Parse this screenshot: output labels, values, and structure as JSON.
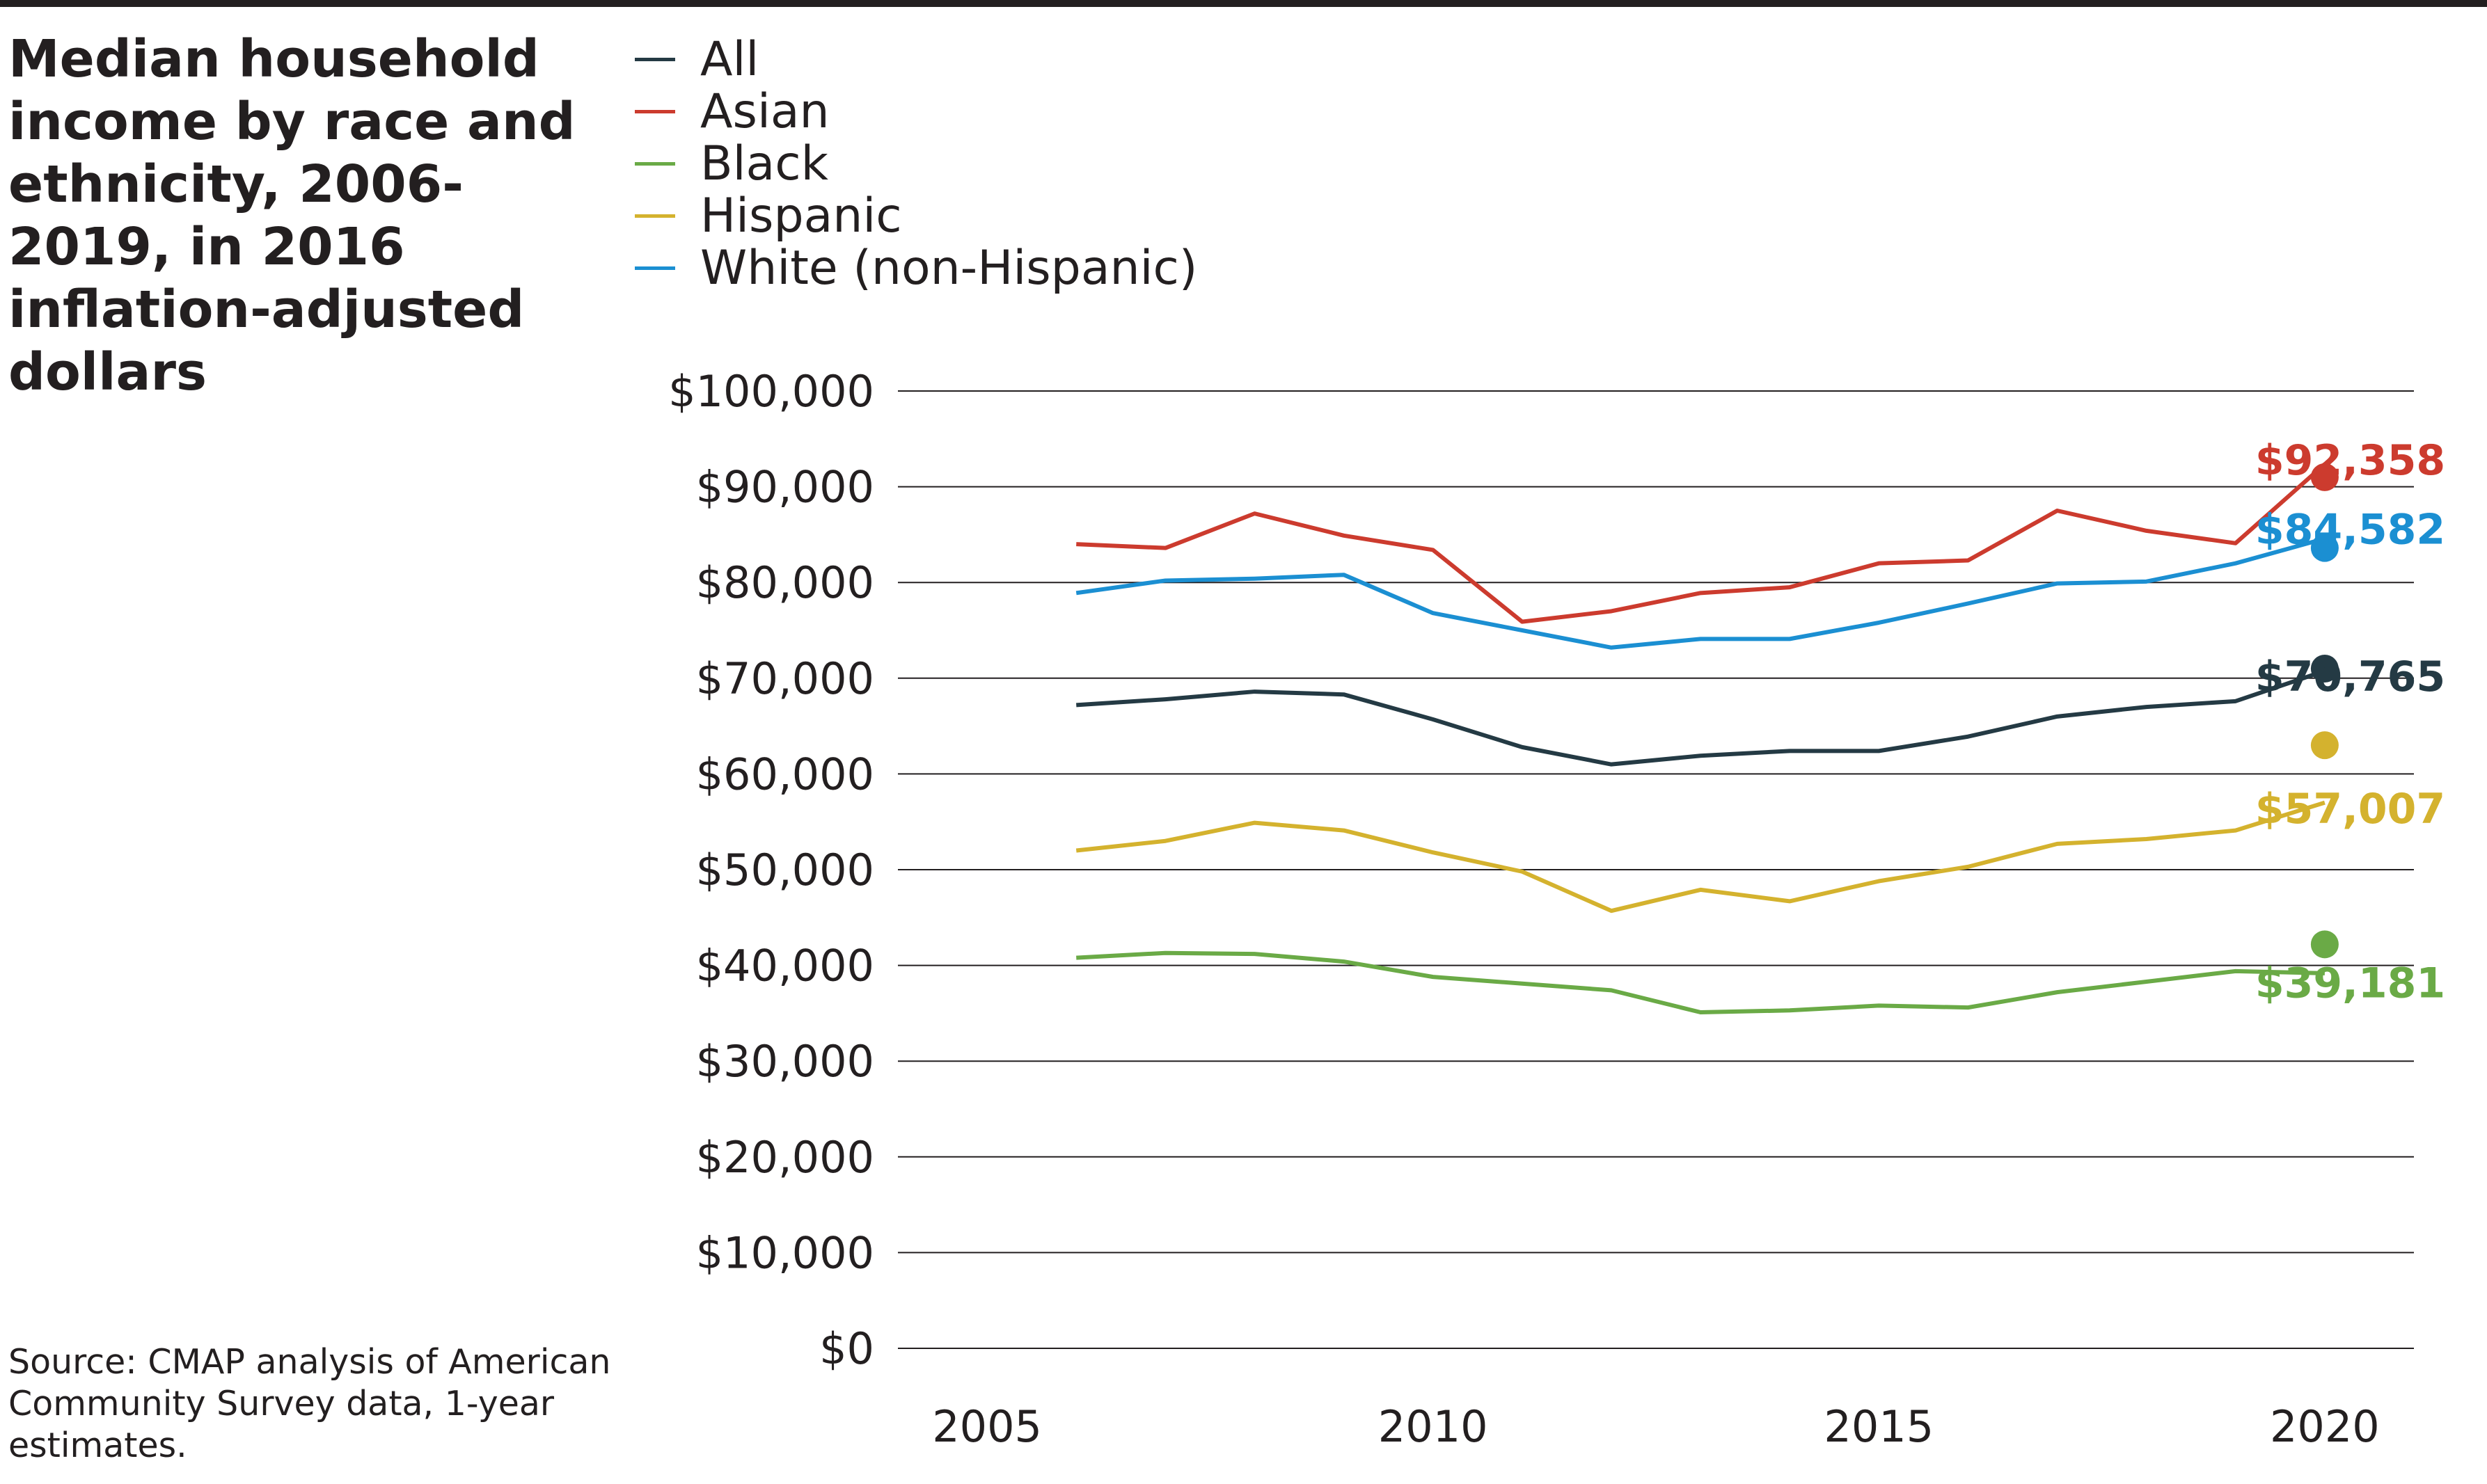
{
  "title": "Median household income by race and ethnicity, 2006-2019, in 2016 inflation-adjusted dollars",
  "source": "Source: CMAP analysis of American Community Survey data, 1-year estimates.",
  "chart_data": {
    "type": "line",
    "title": "Median household income by race and ethnicity, 2006-2019, in 2016 inflation-adjusted dollars",
    "xlabel": "",
    "ylabel": "",
    "xlim": [
      2004,
      2021
    ],
    "ylim": [
      0,
      100000
    ],
    "x_ticks": [
      2005,
      2010,
      2015,
      2020
    ],
    "x_tick_labels": [
      "2005",
      "2010",
      "2015",
      "2020"
    ],
    "y_ticks": [
      0,
      10000,
      20000,
      30000,
      40000,
      50000,
      60000,
      70000,
      80000,
      90000,
      100000
    ],
    "y_tick_labels": [
      "$0",
      "$10,000",
      "$20,000",
      "$30,000",
      "$40,000",
      "$50,000",
      "$60,000",
      "$70,000",
      "$80,000",
      "$90,000",
      "$100,000"
    ],
    "grid": "horizontal",
    "legend": "top-left",
    "x": [
      2006,
      2007,
      2008,
      2009,
      2010,
      2011,
      2012,
      2013,
      2014,
      2015,
      2016,
      2017,
      2018,
      2019,
      2020
    ],
    "series": [
      {
        "name": "All",
        "color": "#243a44",
        "values": [
          67200,
          67800,
          68600,
          68300,
          65700,
          62800,
          61000,
          61900,
          62400,
          62400,
          63900,
          66000,
          67000,
          67600,
          70765
        ],
        "end_value": 71000,
        "end_label": "$70,765"
      },
      {
        "name": "Asian",
        "color": "#cc3b2e",
        "values": [
          84000,
          83600,
          87200,
          84900,
          83400,
          75900,
          77000,
          78900,
          79500,
          82000,
          82300,
          87500,
          85400,
          84100,
          92358
        ],
        "end_value": 91000,
        "end_label": "$92,358"
      },
      {
        "name": "Black",
        "color": "#6aaa46",
        "values": [
          40800,
          41300,
          41200,
          40400,
          38800,
          38100,
          37400,
          35100,
          35300,
          35800,
          35600,
          37200,
          38300,
          39400,
          39181
        ],
        "end_value": 42200,
        "end_label": "$39,181"
      },
      {
        "name": "Hispanic",
        "color": "#d4b22e",
        "values": [
          52000,
          53000,
          54900,
          54100,
          51800,
          49800,
          45700,
          47900,
          46700,
          48800,
          50300,
          52700,
          53200,
          54100,
          57007
        ],
        "end_value": 63000,
        "end_label": "$57,007"
      },
      {
        "name": "White (non-Hispanic)",
        "color": "#1b8fd2",
        "values": [
          78900,
          80200,
          80400,
          80800,
          76800,
          75000,
          73200,
          74100,
          74100,
          75800,
          77800,
          79900,
          80100,
          82000,
          84582
        ],
        "end_value": 83600,
        "end_label": "$84,582"
      }
    ]
  }
}
